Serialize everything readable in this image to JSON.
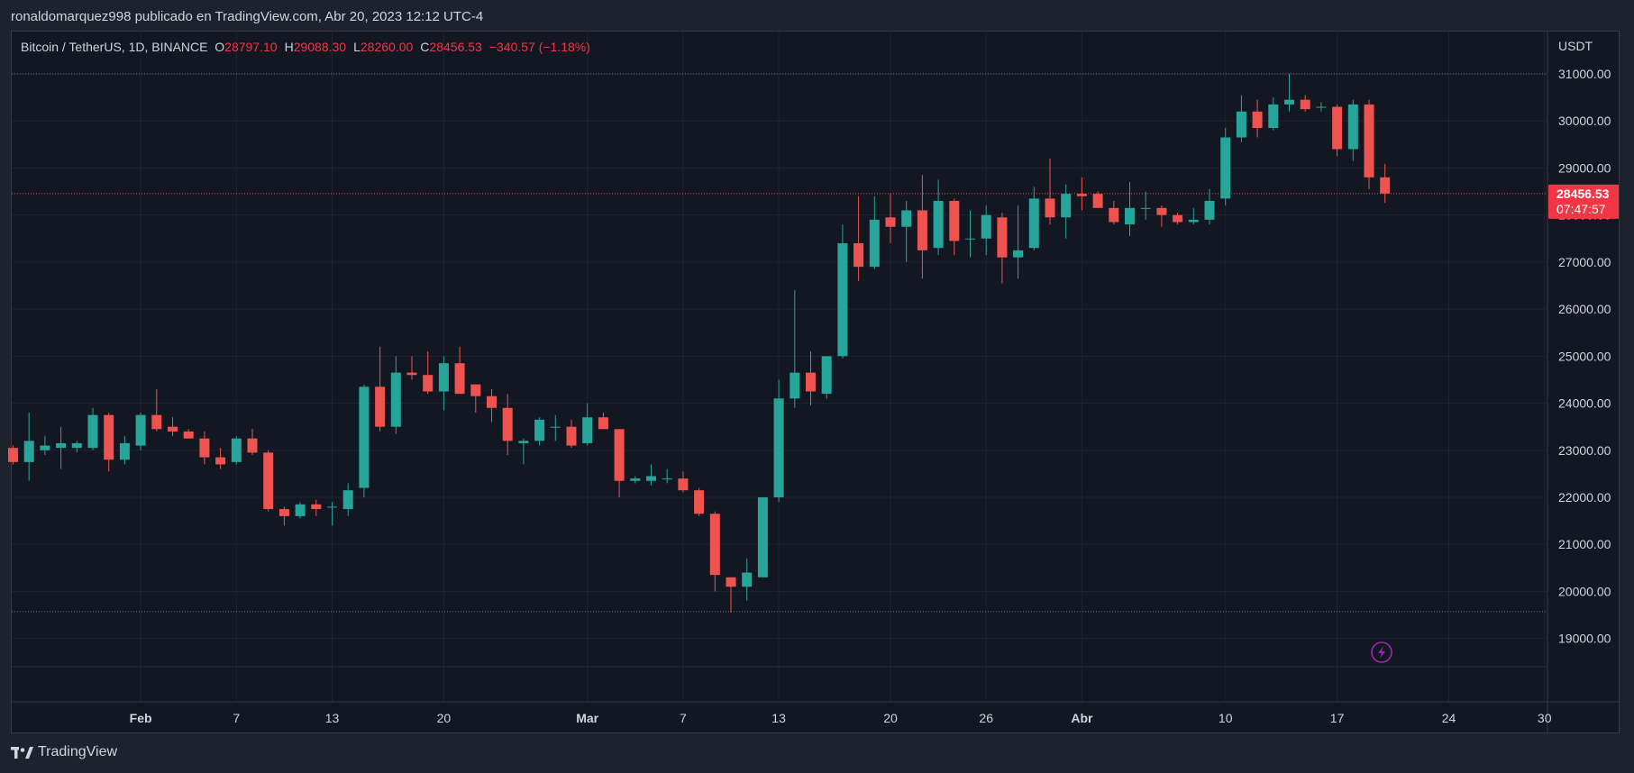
{
  "header": {
    "publish_text": "ronaldomarquez998 publicado en TradingView.com, Abr 20, 2023 12:12 UTC-4"
  },
  "legend": {
    "symbol": "Bitcoin / TetherUS, 1D, BINANCE",
    "open_label": "O",
    "open": "28797.10",
    "high_label": "H",
    "high": "29088.30",
    "low_label": "L",
    "low": "28260.00",
    "close_label": "C",
    "close": "28456.53",
    "change": "−340.57 (−1.18%)"
  },
  "price_scale": {
    "currency": "USDT",
    "last_price": "28456.53",
    "countdown": "07:47:57"
  },
  "footer": {
    "brand": "TradingView"
  },
  "colors": {
    "up": "#26a69a",
    "down": "#ef5350",
    "background": "#131722",
    "grid": "#1f2330",
    "text": "#d1d4dc",
    "accent": "#9c27b0"
  },
  "icons": {
    "lightning": "lightning-icon"
  },
  "chart_data": {
    "type": "candlestick",
    "ylim": [
      18400,
      31900
    ],
    "y_ticks": [
      19000,
      20000,
      21000,
      22000,
      23000,
      24000,
      25000,
      26000,
      27000,
      28000,
      29000,
      30000,
      31000
    ],
    "y_tick_labels": [
      "19000.00",
      "20000.00",
      "21000.00",
      "22000.00",
      "23000.00",
      "24000.00",
      "25000.00",
      "26000.00",
      "27000.00",
      "28000.00",
      "29000.00",
      "30000.00",
      "31000.00"
    ],
    "x_ticks": [
      {
        "label": "Feb",
        "index": 8,
        "bold": true
      },
      {
        "label": "7",
        "index": 14
      },
      {
        "label": "13",
        "index": 20
      },
      {
        "label": "20",
        "index": 27
      },
      {
        "label": "Mar",
        "index": 36,
        "bold": true
      },
      {
        "label": "7",
        "index": 42
      },
      {
        "label": "13",
        "index": 48
      },
      {
        "label": "20",
        "index": 55
      },
      {
        "label": "26",
        "index": 61
      },
      {
        "label": "Abr",
        "index": 67,
        "bold": true
      },
      {
        "label": "10",
        "index": 76
      },
      {
        "label": "17",
        "index": 83
      },
      {
        "label": "24",
        "index": 90
      },
      {
        "label": "30",
        "index": 96
      }
    ],
    "reference_lines": [
      31000,
      19570
    ],
    "last_price": 28456.53,
    "candles": [
      [
        23050,
        23100,
        22700,
        22750
      ],
      [
        22750,
        23800,
        22350,
        23200
      ],
      [
        23000,
        23300,
        22900,
        23100
      ],
      [
        23050,
        23500,
        22600,
        23150
      ],
      [
        23050,
        23200,
        22950,
        23150
      ],
      [
        23050,
        23900,
        23000,
        23750
      ],
      [
        23750,
        23800,
        22550,
        22800
      ],
      [
        22800,
        23300,
        22700,
        23150
      ],
      [
        23100,
        23800,
        23000,
        23750
      ],
      [
        23750,
        24300,
        23400,
        23450
      ],
      [
        23500,
        23700,
        23300,
        23400
      ],
      [
        23400,
        23450,
        23250,
        23250
      ],
      [
        23250,
        23400,
        22700,
        22850
      ],
      [
        22850,
        23050,
        22600,
        22700
      ],
      [
        22750,
        23300,
        22700,
        23250
      ],
      [
        23250,
        23450,
        22900,
        22950
      ],
      [
        22950,
        23000,
        21700,
        21750
      ],
      [
        21750,
        21800,
        21400,
        21600
      ],
      [
        21600,
        21900,
        21550,
        21850
      ],
      [
        21850,
        21950,
        21600,
        21750
      ],
      [
        21800,
        21900,
        21400,
        21800
      ],
      [
        21750,
        22300,
        21600,
        22150
      ],
      [
        22200,
        24400,
        22000,
        24350
      ],
      [
        24350,
        25200,
        23400,
        23500
      ],
      [
        23500,
        25000,
        23350,
        24650
      ],
      [
        24650,
        25000,
        24500,
        24600
      ],
      [
        24600,
        25100,
        24200,
        24250
      ],
      [
        24250,
        25000,
        23850,
        24850
      ],
      [
        24850,
        25200,
        24200,
        24200
      ],
      [
        24400,
        24400,
        23800,
        24150
      ],
      [
        24150,
        24300,
        23600,
        23900
      ],
      [
        23900,
        24200,
        22900,
        23200
      ],
      [
        23150,
        23250,
        22700,
        23200
      ],
      [
        23200,
        23700,
        23100,
        23650
      ],
      [
        23500,
        23750,
        23200,
        23500
      ],
      [
        23500,
        23650,
        23050,
        23100
      ],
      [
        23150,
        24000,
        23100,
        23700
      ],
      [
        23700,
        23800,
        23500,
        23450
      ],
      [
        23450,
        23450,
        22000,
        22350
      ],
      [
        22350,
        22450,
        22300,
        22400
      ],
      [
        22350,
        22700,
        22250,
        22450
      ],
      [
        22400,
        22600,
        22300,
        22400
      ],
      [
        22400,
        22550,
        22100,
        22150
      ],
      [
        22150,
        22200,
        21600,
        21650
      ],
      [
        21650,
        21700,
        20000,
        20350
      ],
      [
        20300,
        20300,
        19550,
        20100
      ],
      [
        20100,
        20700,
        19800,
        20400
      ],
      [
        20300,
        22000,
        20300,
        22000
      ],
      [
        22000,
        24500,
        21900,
        24100
      ],
      [
        24100,
        26400,
        23900,
        24650
      ],
      [
        24650,
        25100,
        23950,
        24250
      ],
      [
        24200,
        25000,
        24100,
        25000
      ],
      [
        25000,
        27800,
        24950,
        27400
      ],
      [
        27400,
        28400,
        26600,
        26900
      ],
      [
        26900,
        28400,
        26850,
        27900
      ],
      [
        27950,
        28450,
        27400,
        27750
      ],
      [
        27750,
        28300,
        27000,
        28100
      ],
      [
        28100,
        28850,
        26650,
        27250
      ],
      [
        27300,
        28750,
        27150,
        28300
      ],
      [
        28300,
        28350,
        27150,
        27450
      ],
      [
        27500,
        28100,
        27100,
        27500
      ],
      [
        27500,
        28200,
        27150,
        28000
      ],
      [
        27950,
        28050,
        26550,
        27100
      ],
      [
        27100,
        28200,
        26650,
        27250
      ],
      [
        27300,
        28600,
        27250,
        28350
      ],
      [
        28350,
        29200,
        27800,
        27950
      ],
      [
        27950,
        28650,
        27500,
        28450
      ],
      [
        28450,
        28800,
        28100,
        28400
      ],
      [
        28450,
        28500,
        28150,
        28150
      ],
      [
        28150,
        28300,
        27800,
        27850
      ],
      [
        27800,
        28700,
        27550,
        28150
      ],
      [
        28150,
        28500,
        27900,
        28150
      ],
      [
        28150,
        28200,
        27750,
        28000
      ],
      [
        28000,
        28050,
        27800,
        27850
      ],
      [
        27850,
        28150,
        27800,
        27900
      ],
      [
        27900,
        28550,
        27800,
        28300
      ],
      [
        28350,
        29850,
        28200,
        29650
      ],
      [
        29650,
        30550,
        29550,
        30200
      ],
      [
        30200,
        30450,
        29650,
        29850
      ],
      [
        29850,
        30500,
        29800,
        30350
      ],
      [
        30350,
        31000,
        30200,
        30450
      ],
      [
        30450,
        30550,
        30200,
        30250
      ],
      [
        30300,
        30400,
        30200,
        30300
      ],
      [
        30300,
        30350,
        29250,
        29400
      ],
      [
        29400,
        30450,
        29150,
        30350
      ],
      [
        30350,
        30450,
        28550,
        28800
      ],
      [
        28800,
        29088.3,
        28260,
        28456.53
      ]
    ]
  }
}
